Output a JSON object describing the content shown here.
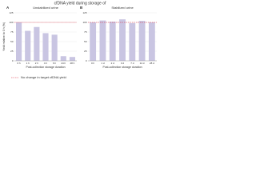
{
  "title": "cfDNA yield during storage of",
  "reference": {
    "label": "No change in target cfDNA yield",
    "value": 100,
    "color": "#d9263c"
  },
  "chart_data": [
    {
      "type": "bar",
      "panel": "A",
      "subtitle": "Unstabilized urine",
      "ylabel": "Yield relative to 0 h (%)",
      "xlabel": "Post-collection storage duration",
      "categories": [
        "0 h",
        "1 h",
        "2 h",
        "4 h",
        "6 h",
        "24 h",
        "48 h"
      ],
      "values": [
        100,
        78,
        88,
        72,
        68,
        12,
        10
      ],
      "color": "#c9c5e2",
      "ylim": [
        0,
        125
      ],
      "yticks": [
        0,
        25,
        50,
        75,
        100,
        125
      ]
    },
    {
      "type": "bar",
      "panel": "B",
      "subtitle": "Stabilized urine",
      "xlabel": "Post-collection storage duration",
      "categories": [
        "0 h",
        "1 d",
        "2 d",
        "3 d",
        "7 d",
        "14 d",
        "28 d"
      ],
      "values": [
        100,
        105,
        102,
        108,
        98,
        104,
        100
      ],
      "color": "#c9c5e2",
      "ylim": [
        0,
        125
      ],
      "yticks": [
        0,
        25,
        50,
        75,
        100,
        125
      ]
    }
  ]
}
